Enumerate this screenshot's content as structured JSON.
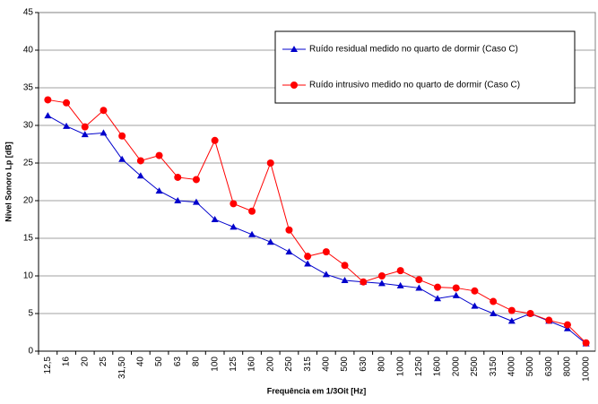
{
  "chart_data": {
    "type": "line",
    "x_label": "Frequência em 1/3Oit [Hz]",
    "y_label": "Nível Sonoro Lp [dB]",
    "categories": [
      "12,5",
      "16",
      "20",
      "25",
      "31,50",
      "40",
      "50",
      "63",
      "80",
      "100",
      "125",
      "160",
      "200",
      "250",
      "315",
      "400",
      "500",
      "630",
      "800",
      "1000",
      "1250",
      "1600",
      "2000",
      "2500",
      "3150",
      "4000",
      "5000",
      "6300",
      "8000",
      "10000"
    ],
    "series": [
      {
        "name": "Ruído residual medido no quarto de dormir (Caso C)",
        "color": "#0000cc",
        "marker": "triangle",
        "values": [
          31.3,
          29.9,
          28.8,
          29.0,
          25.5,
          23.3,
          21.3,
          20.0,
          19.8,
          17.5,
          16.5,
          15.5,
          14.5,
          13.2,
          11.6,
          10.2,
          9.4,
          9.2,
          9.0,
          8.7,
          8.4,
          7.0,
          7.4,
          6.0,
          5.0,
          4.0,
          5.0,
          4.0,
          3.0,
          1.0
        ]
      },
      {
        "name": "Ruído intrusivo medido no quarto de dormir (Caso C)",
        "color": "#ff0000",
        "marker": "circle",
        "values": [
          33.4,
          33.0,
          29.8,
          32.0,
          28.6,
          25.3,
          26.0,
          23.1,
          22.8,
          28.0,
          19.6,
          18.6,
          25.0,
          16.1,
          12.6,
          13.2,
          11.4,
          9.2,
          10.0,
          10.7,
          9.5,
          8.5,
          8.4,
          8.0,
          6.6,
          5.4,
          5.0,
          4.1,
          3.5,
          1.1
        ]
      }
    ],
    "ylim": [
      0,
      45
    ],
    "yticks": [
      0,
      5,
      10,
      15,
      20,
      25,
      30,
      35,
      40,
      45
    ],
    "grid": true,
    "legend": "upper right"
  }
}
